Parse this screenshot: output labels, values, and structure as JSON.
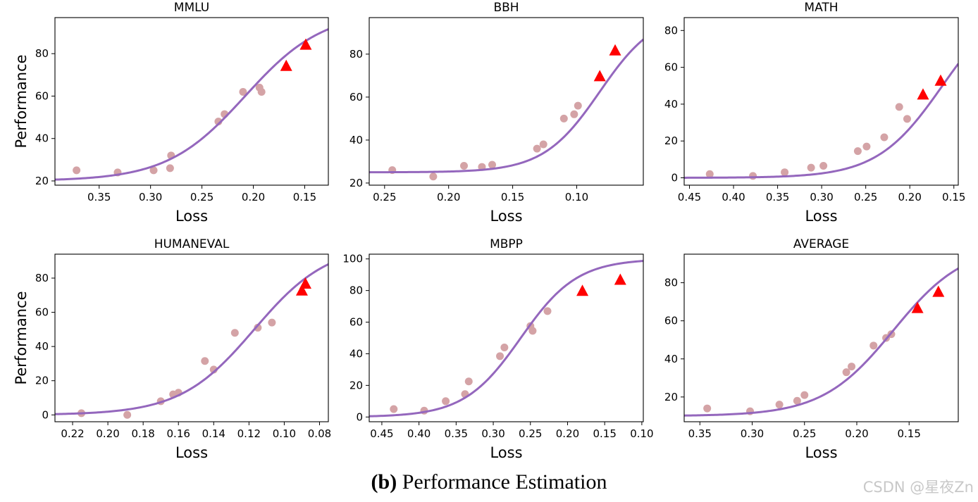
{
  "figure": {
    "caption_label": "(b)",
    "caption_text": "Performance Estimation",
    "watermark": "CSDN @星夜Zn",
    "colors": {
      "curve": "#9467bd",
      "points": "#d4a3a6",
      "triangles": "#ff0000",
      "axes": "#000000"
    }
  },
  "chart_data": [
    {
      "type": "scatter",
      "title": "MMLU",
      "xlabel": "Loss",
      "ylabel": "Performance",
      "xlim": [
        0.393,
        0.127
      ],
      "ylim": [
        18,
        97
      ],
      "xticks": [
        0.35,
        0.3,
        0.25,
        0.2,
        0.15
      ],
      "xticklabels": [
        "0.35",
        "0.30",
        "0.25",
        "0.20",
        "0.15"
      ],
      "yticks": [
        20,
        40,
        60,
        80
      ],
      "yticklabels": [
        "20",
        "40",
        "60",
        "80"
      ],
      "points": [
        [
          0.372,
          25
        ],
        [
          0.332,
          24
        ],
        [
          0.297,
          25
        ],
        [
          0.281,
          26
        ],
        [
          0.28,
          32
        ],
        [
          0.234,
          48
        ],
        [
          0.228,
          51.5
        ],
        [
          0.21,
          62
        ],
        [
          0.194,
          64
        ],
        [
          0.192,
          62
        ]
      ],
      "triangles": [
        [
          0.168,
          74
        ],
        [
          0.149,
          84
        ]
      ],
      "curve": {
        "low": 20,
        "high": 100,
        "mid": 0.208,
        "scale": 0.038
      }
    },
    {
      "type": "scatter",
      "title": "BBH",
      "xlabel": "Loss",
      "ylabel": "",
      "xlim": [
        0.262,
        0.048
      ],
      "ylim": [
        19,
        97
      ],
      "xticks": [
        0.25,
        0.2,
        0.15,
        0.1
      ],
      "xticklabels": [
        "0.25",
        "0.20",
        "0.15",
        "0.10"
      ],
      "yticks": [
        20,
        40,
        60,
        80
      ],
      "yticklabels": [
        "20",
        "40",
        "60",
        "80"
      ],
      "points": [
        [
          0.244,
          26
        ],
        [
          0.212,
          23
        ],
        [
          0.188,
          28
        ],
        [
          0.174,
          27.5
        ],
        [
          0.166,
          28.5
        ],
        [
          0.131,
          36
        ],
        [
          0.126,
          38
        ],
        [
          0.11,
          50
        ],
        [
          0.102,
          52
        ],
        [
          0.099,
          56
        ]
      ],
      "triangles": [
        [
          0.082,
          69.5
        ],
        [
          0.07,
          81.5
        ]
      ],
      "curve": {
        "low": 25,
        "high": 100,
        "mid": 0.082,
        "scale": 0.022
      }
    },
    {
      "type": "scatter",
      "title": "MATH",
      "xlabel": "Loss",
      "ylabel": "",
      "xlim": [
        0.456,
        0.145
      ],
      "ylim": [
        -4,
        87
      ],
      "xticks": [
        0.45,
        0.4,
        0.35,
        0.3,
        0.25,
        0.2,
        0.15
      ],
      "xticklabels": [
        "0.45",
        "0.40",
        "0.35",
        "0.30",
        "0.25",
        "0.20",
        "0.15"
      ],
      "yticks": [
        0,
        20,
        40,
        60,
        80
      ],
      "yticklabels": [
        "0",
        "20",
        "40",
        "60",
        "80"
      ],
      "points": [
        [
          0.427,
          2
        ],
        [
          0.378,
          1
        ],
        [
          0.342,
          3
        ],
        [
          0.312,
          5.5
        ],
        [
          0.298,
          6.5
        ],
        [
          0.259,
          14.5
        ],
        [
          0.249,
          17
        ],
        [
          0.229,
          22
        ],
        [
          0.212,
          38.5
        ],
        [
          0.203,
          32
        ]
      ],
      "triangles": [
        [
          0.185,
          45
        ],
        [
          0.165,
          52.5
        ]
      ],
      "curve": {
        "low": 0,
        "high": 100,
        "mid": 0.163,
        "scale": 0.037
      }
    },
    {
      "type": "scatter",
      "title": "HUMANEVAL",
      "xlabel": "Loss",
      "ylabel": "Performance",
      "xlim": [
        0.23,
        0.075
      ],
      "ylim": [
        -4,
        94
      ],
      "xticks": [
        0.22,
        0.2,
        0.18,
        0.16,
        0.14,
        0.12,
        0.1,
        0.08
      ],
      "xticklabels": [
        "0.22",
        "0.20",
        "0.18",
        "0.16",
        "0.14",
        "0.12",
        "0.10",
        "0.08"
      ],
      "yticks": [
        0,
        20,
        40,
        60,
        80
      ],
      "yticklabels": [
        "0",
        "20",
        "40",
        "60",
        "80"
      ],
      "points": [
        [
          0.215,
          1
        ],
        [
          0.189,
          0
        ],
        [
          0.17,
          8
        ],
        [
          0.163,
          12
        ],
        [
          0.16,
          13
        ],
        [
          0.145,
          31.5
        ],
        [
          0.14,
          26.5
        ],
        [
          0.128,
          48
        ],
        [
          0.115,
          51
        ],
        [
          0.107,
          54
        ]
      ],
      "triangles": [
        [
          0.09,
          72.5
        ],
        [
          0.088,
          76.5
        ]
      ],
      "curve": {
        "low": 0,
        "high": 100,
        "mid": 0.117,
        "scale": 0.021
      }
    },
    {
      "type": "scatter",
      "title": "MBPP",
      "xlabel": "Loss",
      "ylabel": "",
      "xlim": [
        0.467,
        0.098
      ],
      "ylim": [
        -3,
        103
      ],
      "xticks": [
        0.45,
        0.4,
        0.35,
        0.3,
        0.25,
        0.2,
        0.15,
        0.1
      ],
      "xticklabels": [
        "0.45",
        "0.40",
        "0.35",
        "0.30",
        "0.25",
        "0.20",
        "0.15",
        "0.10"
      ],
      "yticks": [
        0,
        20,
        40,
        60,
        80,
        100
      ],
      "yticklabels": [
        "0",
        "20",
        "40",
        "60",
        "80",
        "100"
      ],
      "points": [
        [
          0.434,
          5
        ],
        [
          0.393,
          4
        ],
        [
          0.364,
          10
        ],
        [
          0.338,
          14.5
        ],
        [
          0.333,
          22.5
        ],
        [
          0.291,
          38.5
        ],
        [
          0.285,
          44
        ],
        [
          0.25,
          57.5
        ],
        [
          0.247,
          54.5
        ],
        [
          0.227,
          67
        ]
      ],
      "triangles": [
        [
          0.18,
          79.5
        ],
        [
          0.129,
          86.5
        ]
      ],
      "curve": {
        "low": 0,
        "high": 100,
        "mid": 0.263,
        "scale": 0.038
      }
    },
    {
      "type": "scatter",
      "title": "AVERAGE",
      "xlabel": "Loss",
      "ylabel": "",
      "xlim": [
        0.365,
        0.103
      ],
      "ylim": [
        7,
        95
      ],
      "xticks": [
        0.35,
        0.3,
        0.25,
        0.2,
        0.15
      ],
      "xticklabels": [
        "0.35",
        "0.30",
        "0.25",
        "0.20",
        "0.15"
      ],
      "yticks": [
        20,
        40,
        60,
        80
      ],
      "yticklabels": [
        "20",
        "40",
        "60",
        "80"
      ],
      "points": [
        [
          0.343,
          14
        ],
        [
          0.302,
          12.5
        ],
        [
          0.274,
          16
        ],
        [
          0.257,
          18
        ],
        [
          0.25,
          21
        ],
        [
          0.21,
          33
        ],
        [
          0.205,
          36
        ],
        [
          0.184,
          47
        ],
        [
          0.172,
          51
        ],
        [
          0.167,
          53
        ]
      ],
      "triangles": [
        [
          0.142,
          66.5
        ],
        [
          0.122,
          75
        ]
      ],
      "curve": {
        "low": 10,
        "high": 100,
        "mid": 0.165,
        "scale": 0.034
      }
    }
  ]
}
